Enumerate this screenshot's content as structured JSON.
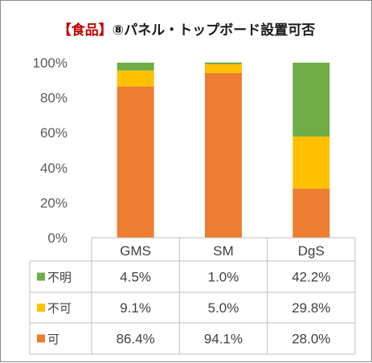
{
  "chart_data": {
    "type": "bar",
    "stacked": true,
    "title": {
      "bracket": "【食品】",
      "main": "⑧パネル・トップボード設置可否"
    },
    "categories": [
      "GMS",
      "SM",
      "DgS"
    ],
    "series": [
      {
        "name": "可",
        "color": "#ed7d31",
        "values": [
          86.4,
          94.1,
          28.0
        ],
        "labels": [
          "86.4%",
          "94.1%",
          "28.0%"
        ]
      },
      {
        "name": "不可",
        "color": "#ffc000",
        "values": [
          9.1,
          5.0,
          29.8
        ],
        "labels": [
          "9.1%",
          "5.0%",
          "29.8%"
        ]
      },
      {
        "name": "不明",
        "color": "#70ad47",
        "values": [
          4.5,
          1.0,
          42.2
        ],
        "labels": [
          "4.5%",
          "1.0%",
          "42.2%"
        ]
      }
    ],
    "table_row_order": [
      "不明",
      "不可",
      "可"
    ],
    "ylim": [
      0,
      100
    ],
    "yticks": [
      "0%",
      "20%",
      "40%",
      "60%",
      "80%",
      "100%"
    ],
    "grid": false,
    "legend": "data-table-left"
  }
}
